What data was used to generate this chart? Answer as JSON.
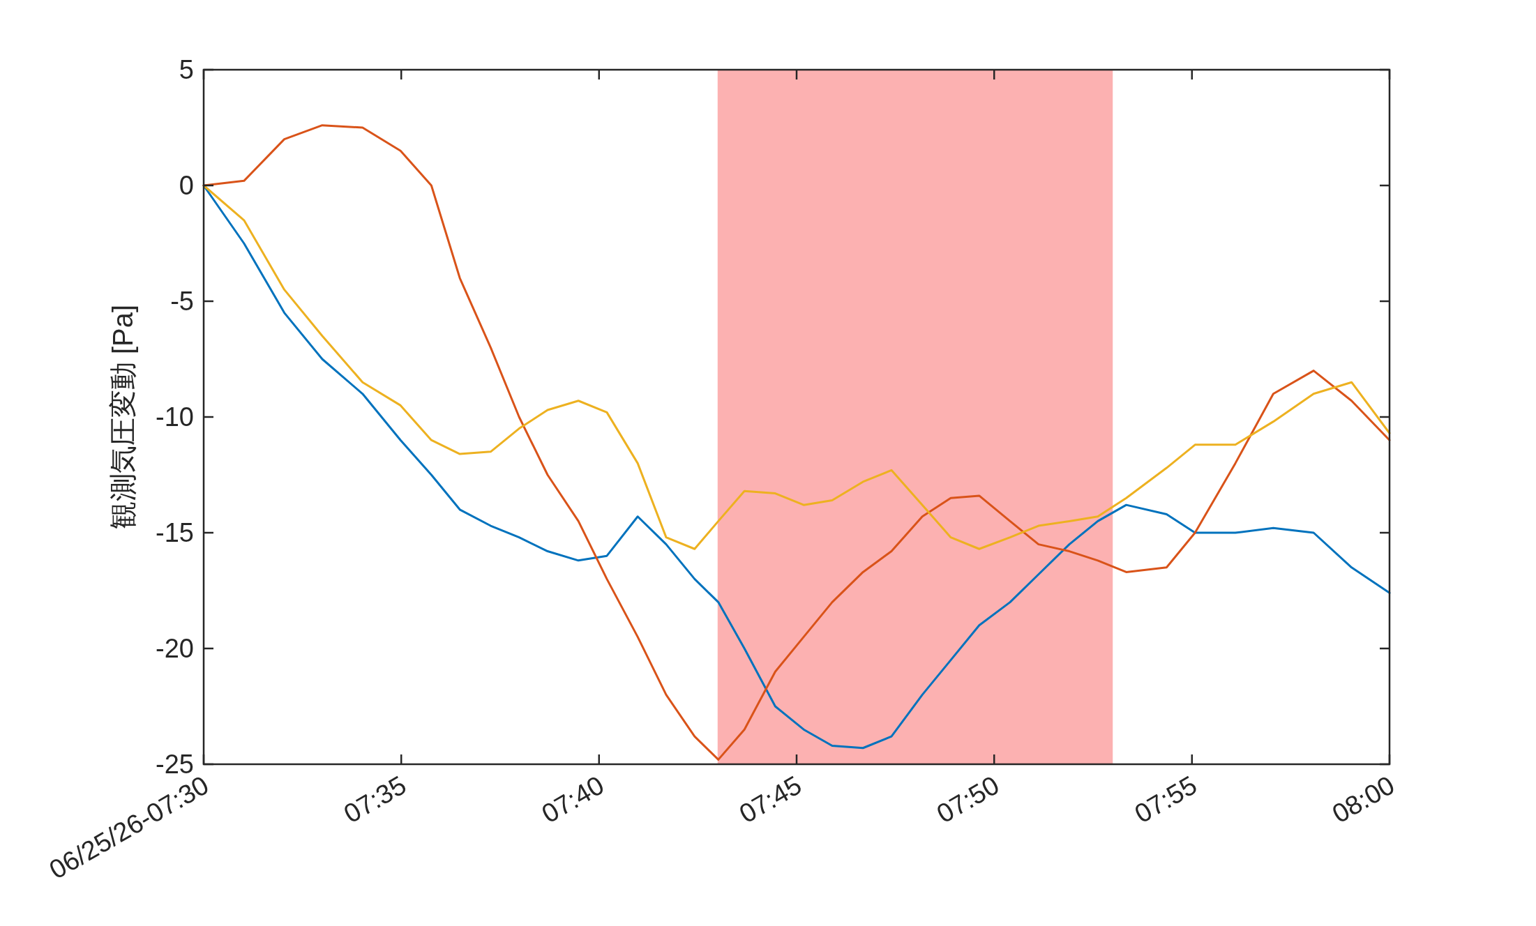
{
  "chart_data": {
    "type": "line",
    "ylabel": "観測気圧変動 [Pa]",
    "x": [
      7.5,
      7.517,
      7.534,
      7.55,
      7.567,
      7.583,
      7.596,
      7.608,
      7.621,
      7.633,
      7.645,
      7.658,
      7.67,
      7.683,
      7.695,
      7.707,
      7.717,
      7.728,
      7.741,
      7.753,
      7.765,
      7.778,
      7.79,
      7.803,
      7.815,
      7.827,
      7.84,
      7.852,
      7.865,
      7.877,
      7.889,
      7.906,
      7.918,
      7.935,
      7.951,
      7.968,
      7.984,
      8.0
    ],
    "series": [
      {
        "color": "#0072bd",
        "values": [
          0,
          -2.5,
          -5.5,
          -7.5,
          -9,
          -11,
          -12.5,
          -14,
          -14.7,
          -15.2,
          -15.8,
          -16.2,
          -16,
          -14.3,
          -15.5,
          -17,
          -18,
          -20,
          -22.5,
          -23.5,
          -24.2,
          -24.3,
          -23.8,
          -22,
          -20.5,
          -19,
          -18,
          -16.8,
          -15.5,
          -14.5,
          -13.8,
          -14.2,
          -15,
          -15,
          -14.8,
          -15,
          -16.5,
          -17.6
        ]
      },
      {
        "color": "#d95319",
        "values": [
          0,
          0.2,
          2,
          2.6,
          2.5,
          1.5,
          0,
          -4,
          -7,
          -10,
          -12.5,
          -14.5,
          -17,
          -19.5,
          -22,
          -23.8,
          -24.8,
          -23.5,
          -21,
          -19.5,
          -18,
          -16.7,
          -15.8,
          -14.3,
          -13.5,
          -13.4,
          -14.5,
          -15.5,
          -15.8,
          -16.2,
          -16.7,
          -16.5,
          -15,
          -12,
          -9,
          -8,
          -9.3,
          -11
        ]
      },
      {
        "color": "#edb120",
        "values": [
          0,
          -1.5,
          -4.5,
          -6.5,
          -8.5,
          -9.5,
          -11,
          -11.6,
          -11.5,
          -10.5,
          -9.7,
          -9.3,
          -9.8,
          -12,
          -15.2,
          -15.7,
          -14.5,
          -13.2,
          -13.3,
          -13.8,
          -13.6,
          -12.8,
          -12.3,
          -13.8,
          -15.2,
          -15.7,
          -15.2,
          -14.7,
          -14.5,
          -14.3,
          -13.5,
          -12.2,
          -11.2,
          -11.2,
          -10.2,
          -9,
          -8.5,
          -10.7
        ]
      }
    ],
    "xlim": [
      7.5,
      8.0
    ],
    "ylim": [
      -25,
      5
    ],
    "xticks": [
      {
        "value": 7.5,
        "label": "06/25/26-07:30"
      },
      {
        "value": 7.5833,
        "label": "07:35"
      },
      {
        "value": 7.6667,
        "label": "07:40"
      },
      {
        "value": 7.75,
        "label": "07:45"
      },
      {
        "value": 7.8333,
        "label": "07:50"
      },
      {
        "value": 7.9167,
        "label": "07:55"
      },
      {
        "value": 8.0,
        "label": "08:00"
      }
    ],
    "yticks": [
      5,
      0,
      -5,
      -10,
      -15,
      -20,
      -25
    ],
    "bands": [
      {
        "axis": "x",
        "from": 7.7167,
        "to": 7.8833,
        "color": "#fcb1b1"
      }
    ],
    "grid": false
  }
}
